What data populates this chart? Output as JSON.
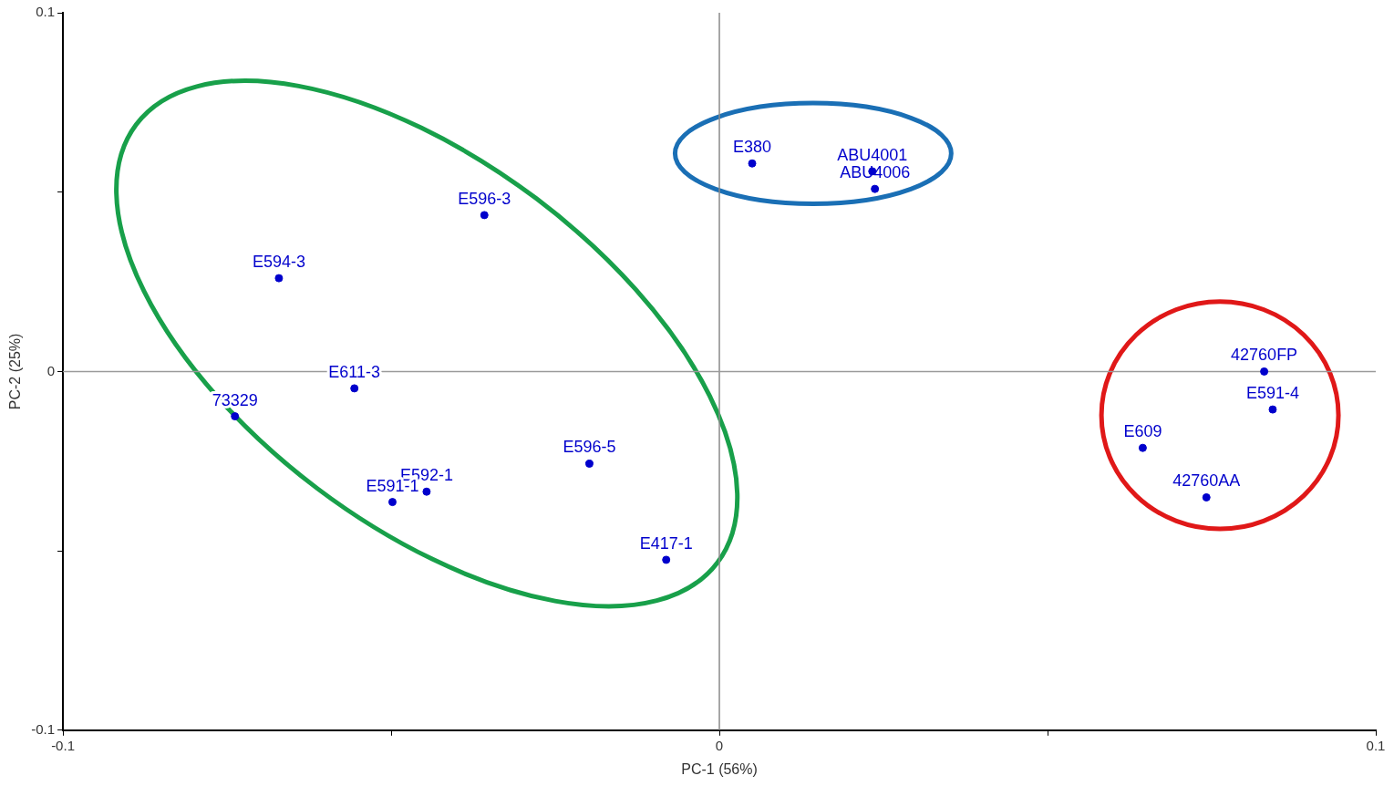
{
  "chart_data": {
    "type": "scatter",
    "xlabel": "PC-1 (56%)",
    "ylabel": "PC-2 (25%)",
    "xlim": [
      -0.1,
      0.1
    ],
    "xticks": [
      -0.1,
      {
        "value": -0.05,
        "label": null
      },
      0,
      {
        "value": 0.05,
        "label": null
      },
      0.1
    ],
    "ylim": [
      -0.1,
      0.1
    ],
    "yticks": [
      -0.1,
      {
        "value": -0.05,
        "label": null
      },
      0,
      {
        "value": 0.05,
        "label": null
      },
      0.1
    ],
    "grid": false,
    "legend": false,
    "marker": "circle",
    "ref_lines": [
      {
        "axis": "x",
        "value": 0,
        "color": "#8a8a8a"
      },
      {
        "axis": "y",
        "value": 0,
        "color": "#9a9a9a"
      }
    ],
    "series": [
      {
        "color": "#0000cc",
        "x": [
          0.005,
          0.0233,
          0.0237,
          -0.0358,
          -0.0671,
          -0.0556,
          -0.0738,
          -0.0198,
          -0.0446,
          -0.0498,
          -0.0081,
          0.083,
          0.0843,
          0.0645,
          0.0742
        ],
        "values": [
          0.058,
          0.0558,
          0.0509,
          0.0436,
          0.026,
          -0.0047,
          -0.0125,
          -0.0257,
          -0.0335,
          -0.0364,
          -0.0525,
          0.0,
          -0.0106,
          -0.0213,
          -0.0351
        ]
      }
    ],
    "annotations": [
      {
        "text": "E380",
        "x": 0.005,
        "y": 0.058
      },
      {
        "text": "ABU4001",
        "x": 0.0233,
        "y": 0.0558
      },
      {
        "text": "ABU4006",
        "x": 0.0237,
        "y": 0.0509
      },
      {
        "text": "E596-3",
        "x": -0.0358,
        "y": 0.0436
      },
      {
        "text": "E594-3",
        "x": -0.0671,
        "y": 0.026
      },
      {
        "text": "E611-3",
        "x": -0.0556,
        "y": -0.0047
      },
      {
        "text": "73329",
        "x": -0.0738,
        "y": -0.0125
      },
      {
        "text": "E596-5",
        "x": -0.0198,
        "y": -0.0257
      },
      {
        "text": "E592-1",
        "x": -0.0446,
        "y": -0.0335
      },
      {
        "text": "E591-1",
        "x": -0.0498,
        "y": -0.0364
      },
      {
        "text": "E417-1",
        "x": -0.0081,
        "y": -0.0525
      },
      {
        "text": "42760FP",
        "x": 0.083,
        "y": 0.0
      },
      {
        "text": "E591-4",
        "x": 0.0843,
        "y": -0.0106
      },
      {
        "text": "E609",
        "x": 0.0645,
        "y": -0.0213
      },
      {
        "text": "42760AA",
        "x": 0.0742,
        "y": -0.0351
      }
    ]
  }
}
